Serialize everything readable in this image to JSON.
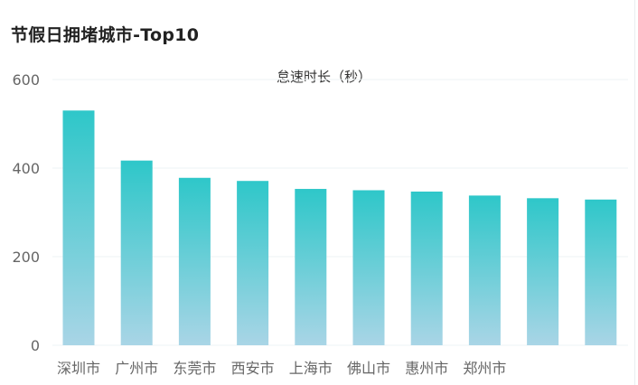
{
  "title": "节假日拥堵城市-Top10",
  "chart_data": {
    "type": "bar",
    "title": "节假日拥堵城市-Top10",
    "series": [
      {
        "name": "怠速时长（秒）"
      }
    ],
    "legend_label": "怠速时长（秒）",
    "categories": [
      "深圳市",
      "广州市",
      "东莞市",
      "西安市",
      "上海市",
      "佛山市",
      "惠州市",
      "郑州市",
      "",
      ""
    ],
    "values": [
      530,
      417,
      378,
      371,
      353,
      350,
      347,
      338,
      332,
      329
    ],
    "yticks": [
      0,
      200,
      400,
      600
    ],
    "ylim": [
      0,
      600
    ],
    "grid": true,
    "colors": {
      "bar_top": "#2ec7c9",
      "bar_bottom": "#a9d5e6",
      "grid": "#eef3f5",
      "axis_text": "#666666"
    }
  }
}
